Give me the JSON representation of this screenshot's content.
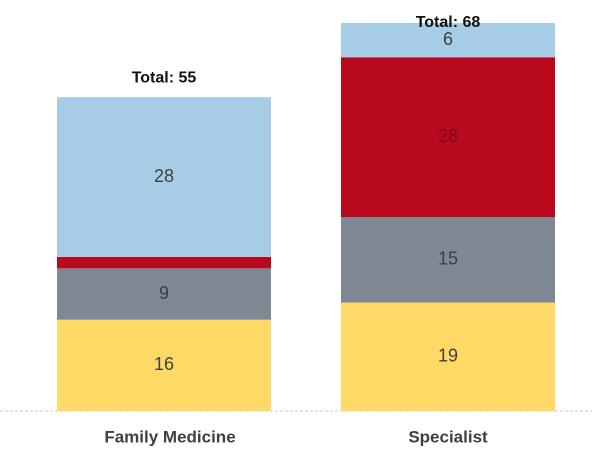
{
  "chart_data": {
    "type": "stacked_bar",
    "categories": [
      "Family Medicine",
      "Specialist"
    ],
    "series": [
      {
        "color": "#FFD966",
        "label_color": "#404040",
        "values": [
          16,
          19
        ]
      },
      {
        "color": "#7F8893",
        "label_color": "#3a3f46",
        "values": [
          9,
          15
        ]
      },
      {
        "color": "#B8091E",
        "label_color": "#7a0a14",
        "values": [
          2,
          28
        ]
      },
      {
        "color": "#A7CCE6",
        "label_color": "#404040",
        "values": [
          28,
          6
        ]
      }
    ],
    "total_labels": [
      "Total: 55",
      "Total: 68"
    ],
    "ylim": [
      0,
      68
    ]
  }
}
